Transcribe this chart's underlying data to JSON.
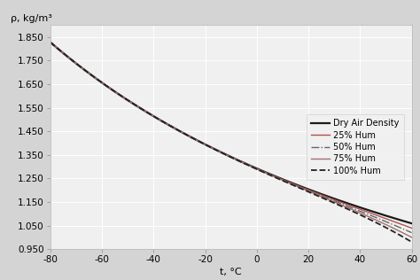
{
  "title": "",
  "xlabel": "t, °C",
  "ylabel": "ρ, kg/m³",
  "xlim": [
    -80,
    60
  ],
  "ylim": [
    0.95,
    1.9
  ],
  "xticks": [
    -80,
    -60,
    -40,
    -20,
    0,
    20,
    40,
    60
  ],
  "yticks": [
    0.95,
    1.05,
    1.15,
    1.25,
    1.35,
    1.45,
    1.55,
    1.65,
    1.75,
    1.85
  ],
  "outer_bg": "#d8d8d8",
  "plot_bg": "#f5f5f5",
  "grid_color": "#ffffff",
  "series": [
    {
      "label": "Dry Air Density",
      "color": "#1a1a1a",
      "linestyle": "-",
      "linewidth": 1.6,
      "humidity": 0.0
    },
    {
      "label": "25% Hum",
      "color": "#b05050",
      "linestyle": "-",
      "linewidth": 1.0,
      "humidity": 0.25
    },
    {
      "label": "50% Hum",
      "color": "#666666",
      "linestyle": "-.",
      "linewidth": 1.0,
      "humidity": 0.5
    },
    {
      "label": "75% Hum",
      "color": "#a07070",
      "linestyle": "-",
      "linewidth": 1.0,
      "humidity": 0.75
    },
    {
      "label": "100% Hum",
      "color": "#222222",
      "linestyle": "--",
      "linewidth": 1.3,
      "humidity": 1.0
    }
  ],
  "legend_fontsize": 7.0,
  "tick_fontsize": 7.5,
  "label_fontsize": 8.0,
  "ylabel_fontsize": 8.0
}
